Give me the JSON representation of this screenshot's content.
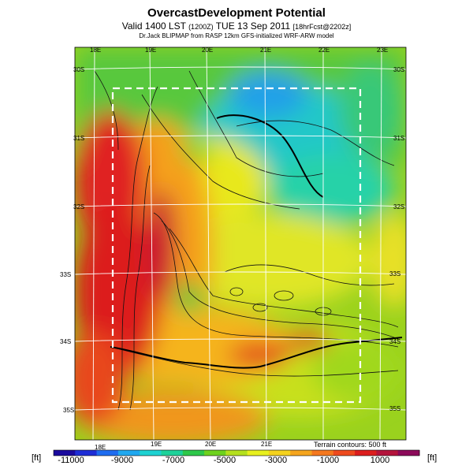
{
  "header": {
    "title": "OvercastDevelopment Potential",
    "valid_line": "Valid 1400 LST",
    "valid_utc": "(1200Z)",
    "valid_date": "TUE 13 Sep 2011",
    "valid_fcst": "[18hrFcst@2202z]",
    "source_line": "Dr.Jack BLIPMAP from RASP 12km GFS-initialized WRF-ARW model"
  },
  "map": {
    "top_lon_labels": [
      "18E",
      "19E",
      "20E",
      "21E",
      "22E",
      "23E"
    ],
    "bottom_lon_labels": [
      "18E",
      "19E",
      "20E",
      "21E"
    ],
    "left_lat_labels": [
      "30S",
      "31S",
      "32S",
      "33S",
      "34S",
      "35S"
    ],
    "right_lat_labels": [
      "30S",
      "31S",
      "32S",
      "33S",
      "34S",
      "35S"
    ],
    "terrain_note": "Terrain contours: 500 ft"
  },
  "colorbar": {
    "unit_left": "[ft]",
    "unit_right": "[ft]",
    "tick_labels": [
      "-11000",
      "-9000",
      "-7000",
      "-5000",
      "-3000",
      "-1000",
      "1000"
    ],
    "colors": [
      "#1a0a9e",
      "#1e2ed6",
      "#1e6cf0",
      "#20a8f0",
      "#1ed2d2",
      "#1ed29a",
      "#2ec84a",
      "#6ed21e",
      "#b4e01e",
      "#e8f01e",
      "#f5d21e",
      "#f5a51e",
      "#f5781e",
      "#ee4a1e",
      "#dc1e1e",
      "#b4143c",
      "#8c0a5a"
    ]
  }
}
